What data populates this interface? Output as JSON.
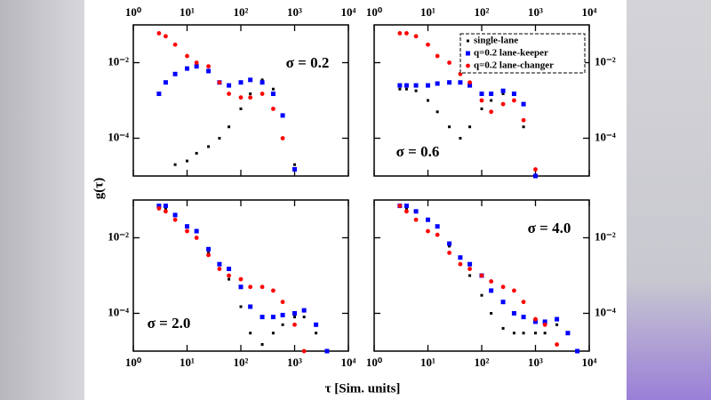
{
  "figure": {
    "xlabel": "τ [Sim. units]",
    "ylabel": "g(τ)"
  },
  "chart_data": [
    {
      "type": "scatter",
      "annotation": "σ = 0.2",
      "log_x": true,
      "log_y": true,
      "x": [
        3,
        4,
        6,
        10,
        15,
        25,
        40,
        60,
        100,
        150,
        250,
        400,
        600,
        1000,
        1500,
        2500,
        4000,
        6000
      ],
      "xlim": [
        1,
        10000
      ],
      "ylim": [
        1e-05,
        0.1
      ],
      "xticks": [
        {
          "value": 1,
          "label": "10⁰"
        },
        {
          "value": 10,
          "label": "10¹"
        },
        {
          "value": 100,
          "label": "10²"
        },
        {
          "value": 1000,
          "label": "10³"
        },
        {
          "value": 10000,
          "label": "10⁴"
        }
      ],
      "yticks": [
        {
          "value": 0.01,
          "label": "10⁻²"
        },
        {
          "value": 0.0001,
          "label": "10⁻⁴"
        }
      ],
      "series": [
        {
          "color": "#000000",
          "values": [
            null,
            null,
            2e-05,
            2.5e-05,
            4e-05,
            6e-05,
            0.0001,
            0.0002,
            0.0006,
            0.0015,
            0.0035,
            0.002,
            0.0004,
            2e-05,
            null,
            null,
            null,
            null
          ]
        },
        {
          "color": "#0000ff",
          "values": [
            0.0015,
            0.003,
            0.005,
            0.007,
            0.008,
            0.006,
            0.003,
            0.0025,
            0.003,
            0.0035,
            0.003,
            0.0015,
            0.0004,
            1.5e-05,
            null,
            null,
            null,
            null
          ]
        },
        {
          "color": "#ff0000",
          "values": [
            0.06,
            0.05,
            0.03,
            0.015,
            0.01,
            0.008,
            0.003,
            0.0015,
            0.0012,
            0.0012,
            0.0015,
            0.0006,
            0.0001,
            null,
            null,
            null,
            null,
            null
          ]
        }
      ]
    },
    {
      "type": "scatter",
      "annotation": "σ = 0.6",
      "log_x": true,
      "log_y": true,
      "x": [
        3,
        4,
        6,
        10,
        15,
        25,
        40,
        60,
        100,
        150,
        250,
        400,
        600,
        1000,
        1500,
        2500,
        4000,
        6000
      ],
      "xlim": [
        1,
        10000
      ],
      "ylim": [
        1e-05,
        0.1
      ],
      "xticks": [
        {
          "value": 1,
          "label": "10⁰"
        },
        {
          "value": 10,
          "label": "10¹"
        },
        {
          "value": 100,
          "label": "10²"
        },
        {
          "value": 1000,
          "label": "10³"
        },
        {
          "value": 10000,
          "label": "10⁴"
        }
      ],
      "yticks": [
        {
          "value": 0.01,
          "label": "10⁻²"
        },
        {
          "value": 0.0001,
          "label": "10⁻⁴"
        }
      ],
      "legend": "upper right",
      "series": [
        {
          "name": "single-lane",
          "color": "#000000",
          "values": [
            0.002,
            0.002,
            0.0018,
            0.001,
            0.0005,
            0.0002,
            0.0001,
            0.0002,
            0.0006,
            0.001,
            0.0015,
            0.001,
            0.0002,
            null,
            null,
            null,
            null,
            null
          ]
        },
        {
          "name": "q=0.2 lane-keeper",
          "color": "#0000ff",
          "values": [
            0.0025,
            0.0025,
            0.0025,
            0.0025,
            0.0028,
            0.003,
            0.003,
            0.0025,
            0.0015,
            0.0015,
            0.0018,
            0.0015,
            0.0008,
            1e-05,
            null,
            null,
            null,
            null
          ]
        },
        {
          "name": "q=0.2 lane-changer",
          "color": "#ff0000",
          "values": [
            0.06,
            0.06,
            0.05,
            0.03,
            0.015,
            0.01,
            0.005,
            0.003,
            0.001,
            0.0005,
            0.0008,
            0.001,
            0.0003,
            1.5e-05,
            null,
            null,
            null,
            null
          ]
        }
      ]
    },
    {
      "type": "scatter",
      "annotation": "σ = 2.0",
      "log_x": true,
      "log_y": true,
      "x": [
        3,
        4,
        6,
        10,
        15,
        25,
        40,
        60,
        100,
        150,
        250,
        400,
        600,
        1000,
        1500,
        2500,
        4000,
        6000
      ],
      "xlim": [
        1,
        10000
      ],
      "ylim": [
        1e-05,
        0.1
      ],
      "xticks": [
        {
          "value": 1,
          "label": "10⁰"
        },
        {
          "value": 10,
          "label": "10¹"
        },
        {
          "value": 100,
          "label": "10²"
        },
        {
          "value": 1000,
          "label": "10³"
        },
        {
          "value": 10000,
          "label": "10⁴"
        }
      ],
      "yticks": [
        {
          "value": 0.01,
          "label": "10⁻²"
        },
        {
          "value": 0.0001,
          "label": "10⁻⁴"
        }
      ],
      "series": [
        {
          "color": "#000000",
          "values": [
            0.07,
            0.06,
            0.04,
            0.02,
            0.01,
            0.004,
            0.0015,
            0.0008,
            0.00015,
            3e-05,
            1.5e-05,
            3e-05,
            5e-05,
            8e-05,
            8e-05,
            3e-05,
            null,
            null
          ]
        },
        {
          "color": "#0000ff",
          "values": [
            0.07,
            0.07,
            0.04,
            0.02,
            0.015,
            0.005,
            0.002,
            0.0015,
            0.0005,
            0.00015,
            8e-05,
            8e-05,
            9e-05,
            0.0001,
            0.00012,
            5e-05,
            1e-05,
            null
          ]
        },
        {
          "color": "#ff0000",
          "values": [
            0.06,
            0.05,
            0.03,
            0.015,
            0.01,
            0.0035,
            0.0015,
            0.001,
            0.0008,
            0.0005,
            0.0005,
            0.0004,
            0.0002,
            5e-05,
            1e-05,
            null,
            null,
            null
          ]
        }
      ]
    },
    {
      "type": "scatter",
      "annotation": "σ = 4.0",
      "log_x": true,
      "log_y": true,
      "x": [
        3,
        4,
        6,
        10,
        15,
        25,
        40,
        60,
        100,
        150,
        250,
        400,
        600,
        1000,
        1500,
        2500,
        4000,
        6000
      ],
      "xlim": [
        1,
        10000
      ],
      "ylim": [
        1e-05,
        0.1
      ],
      "xticks": [
        {
          "value": 1,
          "label": "10⁰"
        },
        {
          "value": 10,
          "label": "10¹"
        },
        {
          "value": 100,
          "label": "10²"
        },
        {
          "value": 1000,
          "label": "10³"
        },
        {
          "value": 10000,
          "label": "10⁴"
        }
      ],
      "yticks": [
        {
          "value": 0.01,
          "label": "10⁻²"
        },
        {
          "value": 0.0001,
          "label": "10⁻⁴"
        }
      ],
      "series": [
        {
          "color": "#000000",
          "values": [
            0.07,
            0.06,
            0.05,
            0.03,
            0.02,
            0.006,
            0.002,
            0.001,
            0.0003,
            0.0001,
            4e-05,
            3e-05,
            3e-05,
            3e-05,
            3e-05,
            5e-05,
            3e-05,
            1e-05
          ]
        },
        {
          "color": "#0000ff",
          "values": [
            0.07,
            0.07,
            0.05,
            0.03,
            0.02,
            0.007,
            0.003,
            0.002,
            0.001,
            0.0004,
            0.0002,
            0.0001,
            8e-05,
            6e-05,
            6e-05,
            7e-05,
            3e-05,
            1e-05
          ]
        },
        {
          "color": "#ff0000",
          "values": [
            0.07,
            0.05,
            0.03,
            0.015,
            0.012,
            0.004,
            0.002,
            0.0015,
            0.001,
            0.0007,
            0.0005,
            0.0004,
            0.0002,
            7e-05,
            5e-05,
            1.5e-05,
            null,
            null
          ]
        }
      ]
    }
  ]
}
